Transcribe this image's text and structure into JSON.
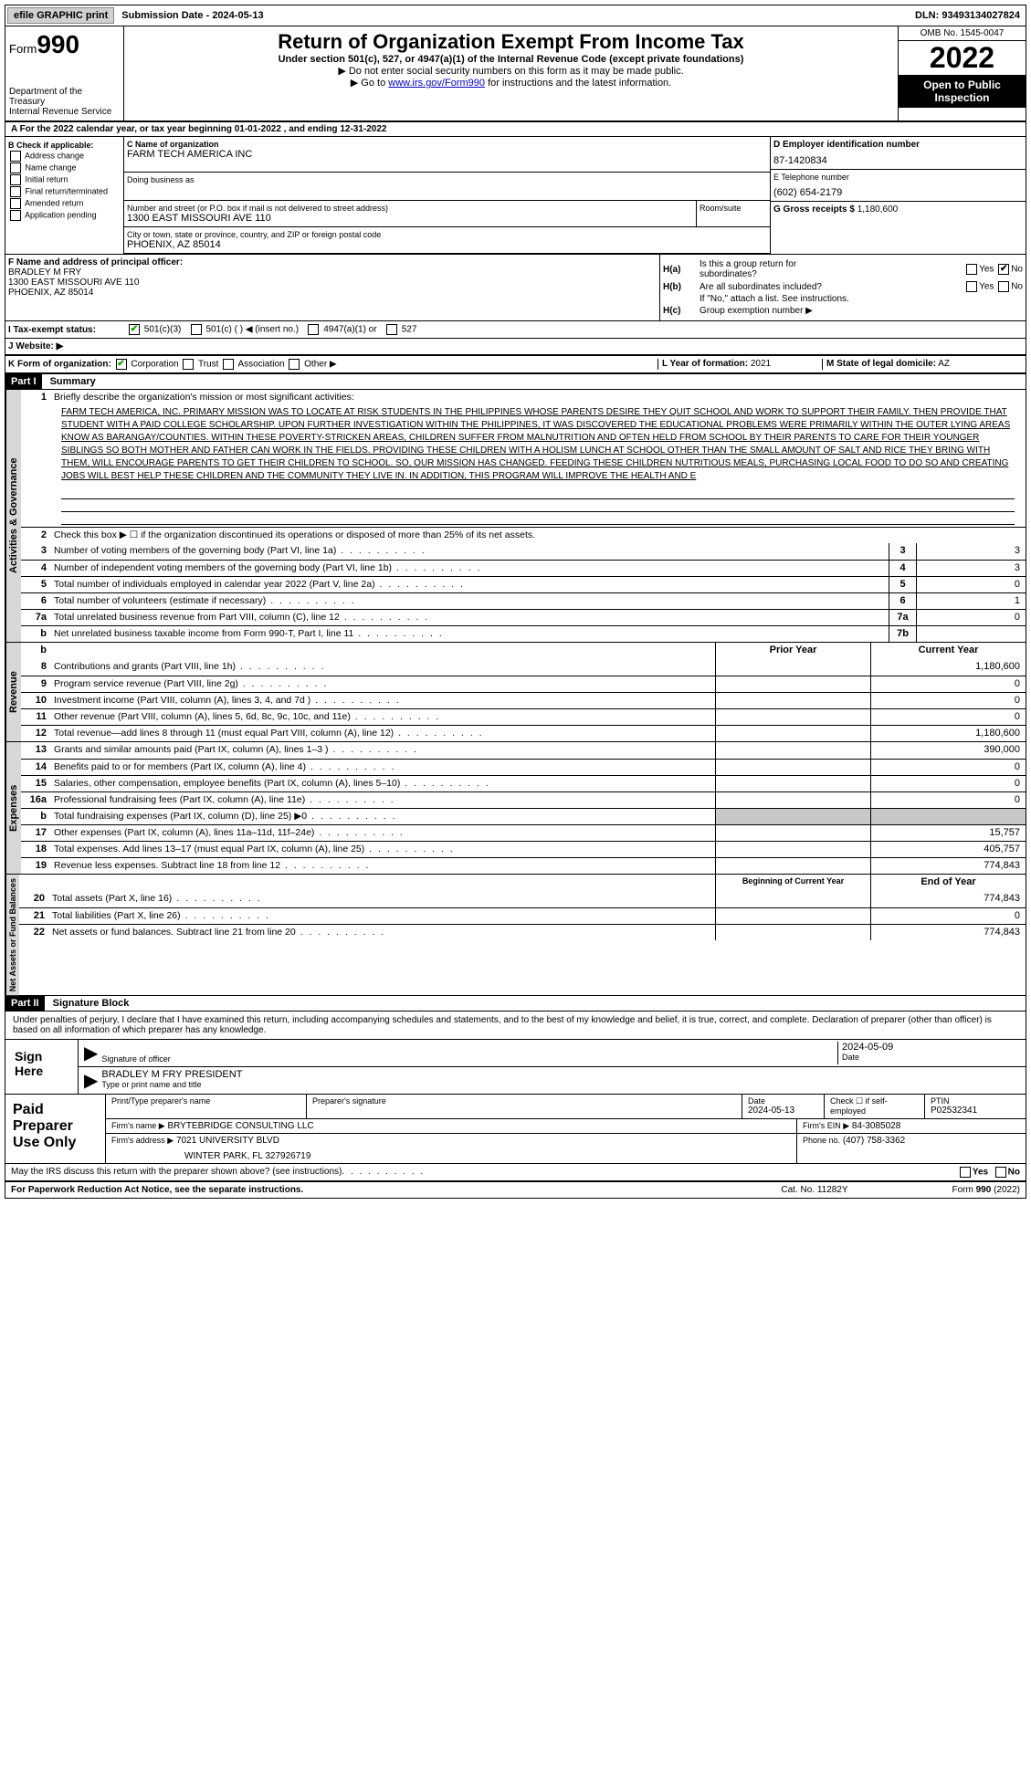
{
  "topbar": {
    "efile": "efile GRAPHIC print",
    "submission": "Submission Date - 2024-05-13",
    "dln": "DLN: 93493134027824"
  },
  "header": {
    "form_label": "Form",
    "form_num": "990",
    "dept": "Department of the Treasury",
    "irs": "Internal Revenue Service",
    "title": "Return of Organization Exempt From Income Tax",
    "subtitle": "Under section 501(c), 527, or 4947(a)(1) of the Internal Revenue Code (except private foundations)",
    "instr1": "▶ Do not enter social security numbers on this form as it may be made public.",
    "instr2_pre": "▶ Go to ",
    "instr2_link": "www.irs.gov/Form990",
    "instr2_post": " for instructions and the latest information.",
    "omb": "OMB No. 1545-0047",
    "year": "2022",
    "open": "Open to Public Inspection"
  },
  "calendar": "A For the 2022 calendar year, or tax year beginning 01-01-2022   , and ending 12-31-2022",
  "secB": {
    "header": "B Check if applicable:",
    "items": [
      "Address change",
      "Name change",
      "Initial return",
      "Final return/terminated",
      "Amended return",
      "Application pending"
    ]
  },
  "secC": {
    "name_lbl": "C Name of organization",
    "name": "FARM TECH AMERICA INC",
    "dba_lbl": "Doing business as",
    "addr_lbl": "Number and street (or P.O. box if mail is not delivered to street address)",
    "addr": "1300 EAST MISSOURI AVE 110",
    "room_lbl": "Room/suite",
    "city_lbl": "City or town, state or province, country, and ZIP or foreign postal code",
    "city": "PHOENIX, AZ  85014"
  },
  "secD": {
    "lbl": "D Employer identification number",
    "ein": "87-1420834",
    "phone_lbl": "E Telephone number",
    "phone": "(602) 654-2179",
    "gross_lbl": "G Gross receipts $",
    "gross": "1,180,600"
  },
  "secF": {
    "lbl": "F  Name and address of principal officer:",
    "name": "BRADLEY M FRY",
    "addr1": "1300 EAST MISSOURI AVE 110",
    "addr2": "PHOENIX, AZ  85014"
  },
  "secH": {
    "a": "Is this a group return for",
    "a2": "subordinates?",
    "b": "Are all subordinates included?",
    "c_note": "If \"No,\" attach a list. See instructions.",
    "c": "Group exemption number ▶"
  },
  "taxI": {
    "lbl": "I  Tax-exempt status:",
    "opt1": "501(c)(3)",
    "opt2": "501(c) (  ) ◀ (insert no.)",
    "opt3": "4947(a)(1) or",
    "opt4": "527"
  },
  "secJ": "J  Website: ▶",
  "secK": {
    "lbl": "K Form of organization:",
    "corp": "Corporation",
    "trust": "Trust",
    "assoc": "Association",
    "other": "Other ▶"
  },
  "secL": {
    "lbl": "L Year of formation:",
    "val": "2021"
  },
  "secM": {
    "lbl": "M State of legal domicile:",
    "val": "AZ"
  },
  "partI": {
    "header": "Part I",
    "title": "Summary",
    "side_ag": "Activities & Governance",
    "side_rev": "Revenue",
    "side_exp": "Expenses",
    "side_na": "Net Assets or Fund Balances",
    "line1_lbl": "Briefly describe the organization's mission or most significant activities:",
    "mission": "FARM TECH AMERICA, INC. PRIMARY MISSION WAS TO LOCATE AT RISK STUDENTS IN THE PHILIPPINES WHOSE PARENTS DESIRE THEY QUIT SCHOOL AND WORK TO SUPPORT THEIR FAMILY. THEN PROVIDE THAT STUDENT WITH A PAID COLLEGE SCHOLARSHIP. UPON FURTHER INVESTIGATION WITHIN THE PHILIPPINES, IT WAS DISCOVERED THE EDUCATIONAL PROBLEMS WERE PRIMARILY WITHIN THE OUTER LYING AREAS KNOW AS BARANGAY/COUNTIES. WITHIN THESE POVERTY-STRICKEN AREAS, CHILDREN SUFFER FROM MALNUTRITION AND OFTEN HELD FROM SCHOOL BY THEIR PARENTS TO CARE FOR THEIR YOUNGER SIBLINGS SO BOTH MOTHER AND FATHER CAN WORK IN THE FIELDS. PROVIDING THESE CHILDREN WITH A HOLISM LUNCH AT SCHOOL OTHER THAN THE SMALL AMOUNT OF SALT AND RICE THEY BRING WITH THEM, WILL ENCOURAGE PARENTS TO GET THEIR CHILDREN TO SCHOOL. SO, OUR MISSION HAS CHANGED. FEEDING THESE CHILDREN NUTRITIOUS MEALS, PURCHASING LOCAL FOOD TO DO SO AND CREATING JOBS WILL BEST HELP THESE CHILDREN AND THE COMMUNITY THEY LIVE IN. IN ADDITION, THIS PROGRAM WILL IMPROVE THE HEALTH AND E",
    "line2": "Check this box ▶ ☐ if the organization discontinued its operations or disposed of more than 25% of its net assets.",
    "lines_gov": [
      {
        "n": "3",
        "t": "Number of voting members of the governing body (Part VI, line 1a)",
        "b": "3",
        "v": "3"
      },
      {
        "n": "4",
        "t": "Number of independent voting members of the governing body (Part VI, line 1b)",
        "b": "4",
        "v": "3"
      },
      {
        "n": "5",
        "t": "Total number of individuals employed in calendar year 2022 (Part V, line 2a)",
        "b": "5",
        "v": "0"
      },
      {
        "n": "6",
        "t": "Total number of volunteers (estimate if necessary)",
        "b": "6",
        "v": "1"
      },
      {
        "n": "7a",
        "t": "Total unrelated business revenue from Part VIII, column (C), line 12",
        "b": "7a",
        "v": "0"
      },
      {
        "n": "b",
        "t": "Net unrelated business taxable income from Form 990-T, Part I, line 11",
        "b": "7b",
        "v": ""
      }
    ],
    "col_prior": "Prior Year",
    "col_current": "Current Year",
    "lines_rev": [
      {
        "n": "8",
        "t": "Contributions and grants (Part VIII, line 1h)",
        "p": "",
        "c": "1,180,600"
      },
      {
        "n": "9",
        "t": "Program service revenue (Part VIII, line 2g)",
        "p": "",
        "c": "0"
      },
      {
        "n": "10",
        "t": "Investment income (Part VIII, column (A), lines 3, 4, and 7d )",
        "p": "",
        "c": "0"
      },
      {
        "n": "11",
        "t": "Other revenue (Part VIII, column (A), lines 5, 6d, 8c, 9c, 10c, and 11e)",
        "p": "",
        "c": "0"
      },
      {
        "n": "12",
        "t": "Total revenue—add lines 8 through 11 (must equal Part VIII, column (A), line 12)",
        "p": "",
        "c": "1,180,600"
      }
    ],
    "lines_exp": [
      {
        "n": "13",
        "t": "Grants and similar amounts paid (Part IX, column (A), lines 1–3 )",
        "p": "",
        "c": "390,000"
      },
      {
        "n": "14",
        "t": "Benefits paid to or for members (Part IX, column (A), line 4)",
        "p": "",
        "c": "0"
      },
      {
        "n": "15",
        "t": "Salaries, other compensation, employee benefits (Part IX, column (A), lines 5–10)",
        "p": "",
        "c": "0"
      },
      {
        "n": "16a",
        "t": "Professional fundraising fees (Part IX, column (A), line 11e)",
        "p": "",
        "c": "0"
      },
      {
        "n": "b",
        "t": "Total fundraising expenses (Part IX, column (D), line 25) ▶0",
        "p": "gray",
        "c": "gray"
      },
      {
        "n": "17",
        "t": "Other expenses (Part IX, column (A), lines 11a–11d, 11f–24e)",
        "p": "",
        "c": "15,757"
      },
      {
        "n": "18",
        "t": "Total expenses. Add lines 13–17 (must equal Part IX, column (A), line 25)",
        "p": "",
        "c": "405,757"
      },
      {
        "n": "19",
        "t": "Revenue less expenses. Subtract line 18 from line 12",
        "p": "",
        "c": "774,843"
      }
    ],
    "col_begin": "Beginning of Current Year",
    "col_end": "End of Year",
    "lines_na": [
      {
        "n": "20",
        "t": "Total assets (Part X, line 16)",
        "p": "",
        "c": "774,843"
      },
      {
        "n": "21",
        "t": "Total liabilities (Part X, line 26)",
        "p": "",
        "c": "0"
      },
      {
        "n": "22",
        "t": "Net assets or fund balances. Subtract line 21 from line 20",
        "p": "",
        "c": "774,843"
      }
    ]
  },
  "partII": {
    "header": "Part II",
    "title": "Signature Block",
    "decl": "Under penalties of perjury, I declare that I have examined this return, including accompanying schedules and statements, and to the best of my knowledge and belief, it is true, correct, and complete. Declaration of preparer (other than officer) is based on all information of which preparer has any knowledge.",
    "sign_here": "Sign Here",
    "sig_officer": "Signature of officer",
    "sig_date": "2024-05-09",
    "date_lbl": "Date",
    "officer_name": "BRADLEY M FRY  PRESIDENT",
    "type_name": "Type or print name and title",
    "paid": "Paid Preparer Use Only",
    "prep_name_lbl": "Print/Type preparer's name",
    "prep_sig_lbl": "Preparer's signature",
    "prep_date_lbl": "Date",
    "prep_date": "2024-05-13",
    "check_self": "Check ☐ if self-employed",
    "ptin_lbl": "PTIN",
    "ptin": "P02532341",
    "firm_name_lbl": "Firm's name    ▶",
    "firm_name": "BRYTEBRIDGE CONSULTING LLC",
    "firm_ein_lbl": "Firm's EIN ▶",
    "firm_ein": "84-3085028",
    "firm_addr_lbl": "Firm's address ▶",
    "firm_addr": "7021 UNIVERSITY BLVD",
    "firm_city": "WINTER PARK, FL  327926719",
    "firm_phone_lbl": "Phone no.",
    "firm_phone": "(407) 758-3362",
    "discuss": "May the IRS discuss this return with the preparer shown above? (see instructions)"
  },
  "footer": {
    "left": "For Paperwork Reduction Act Notice, see the separate instructions.",
    "mid": "Cat. No. 11282Y",
    "right": "Form 990 (2022)"
  },
  "colors": {
    "black": "#000000",
    "gray_bg": "#d8d8d8",
    "gray_cell": "#c8c8c8",
    "green_check": "#00a000",
    "link_blue": "#0000cc"
  }
}
